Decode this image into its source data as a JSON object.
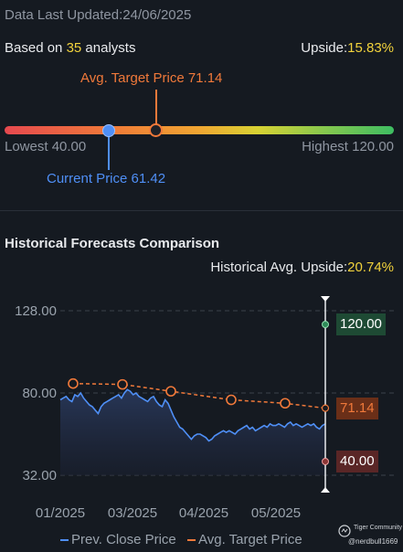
{
  "header": {
    "last_updated_label": "Data Last Updated:",
    "last_updated_value": "24/06/2025",
    "based_on_prefix": "Based on",
    "analyst_count": "35",
    "based_on_suffix": "analysts",
    "upside_label": "Upside:",
    "upside_value": "15.83%"
  },
  "price_range": {
    "avg_target_label": "Avg. Target Price 71.14",
    "current_price_label": "Current Price 61.42",
    "lowest_label": "Lowest 40.00",
    "highest_label": "Highest 120.00",
    "low": 40.0,
    "high": 120.0,
    "current": 61.42,
    "target": 71.14
  },
  "historical": {
    "section_title": "Historical Forecasts Comparison",
    "avg_upside_label": "Historical Avg. Upside:",
    "avg_upside_value": "20.74%",
    "tag_high": "120.00",
    "tag_target": "71.14",
    "tag_low": "40.00"
  },
  "legend": {
    "prev_close": "Prev. Close Price",
    "avg_target": "Avg. Target Price"
  },
  "watermark": {
    "brand": "Tiger Community",
    "user": "@nerdbull1669"
  },
  "colors": {
    "blue": "#4f8ff6",
    "orange": "#f0793a",
    "yellow": "#f2d33c",
    "green_tag": "#1e4a34"
  },
  "chart_data": {
    "type": "line",
    "xlabel": "",
    "ylabel": "",
    "ylim": [
      32.0,
      128.0
    ],
    "y_ticks": [
      "128.00",
      "80.00",
      "32.00"
    ],
    "x_ticks": [
      "01/2025",
      "03/2025",
      "04/2025",
      "05/2025"
    ],
    "series": [
      {
        "name": "Prev. Close Price",
        "color": "#4f8ff6",
        "values": [
          76,
          77,
          78,
          76,
          75,
          79,
          78,
          80,
          77,
          75,
          73,
          72,
          70,
          68,
          72,
          74,
          75,
          76,
          77,
          78,
          79,
          77,
          80,
          82,
          81,
          79,
          80,
          78,
          77,
          76,
          75,
          77,
          78,
          75,
          73,
          72,
          76,
          74,
          70,
          66,
          63,
          60,
          59,
          57,
          55,
          53,
          55,
          56,
          56,
          55,
          54,
          52,
          53,
          55,
          56,
          57,
          58,
          57,
          58,
          57,
          56,
          58,
          59,
          60,
          61,
          59,
          60,
          58,
          59,
          60,
          61,
          60,
          62,
          61,
          61,
          62,
          61,
          60,
          62,
          63,
          61,
          62,
          61,
          60,
          61,
          62,
          61,
          62,
          60,
          59,
          61,
          62
        ]
      },
      {
        "name": "Avg. Target Price",
        "color": "#f0793a",
        "points": [
          {
            "x": "01/2025",
            "y": 85.5
          },
          {
            "x": "03/2025",
            "y": 85.0
          },
          {
            "x": "03/2025+",
            "y": 81.0
          },
          {
            "x": "04/2025",
            "y": 76.0
          },
          {
            "x": "05/2025",
            "y": 74.0
          },
          {
            "x": "latest",
            "y": 71.14
          }
        ]
      }
    ],
    "forecast_range": {
      "high": 120.0,
      "avg": 71.14,
      "low": 40.0
    },
    "legend_position": "bottom",
    "grid": true
  }
}
